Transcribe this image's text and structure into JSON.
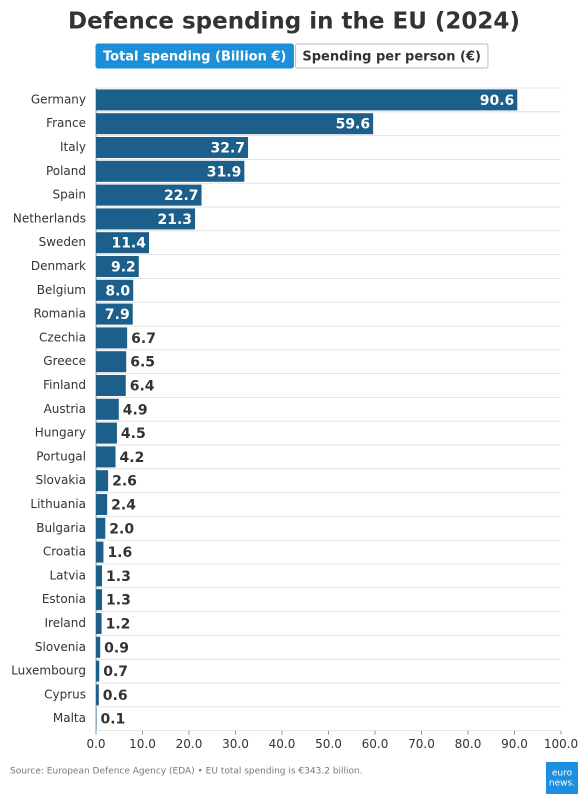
{
  "chart_data": {
    "type": "bar",
    "orientation": "horizontal",
    "title": "Defence spending in the EU (2024)",
    "tabs": [
      "Total spending (Billion €)",
      "Spending per person (€)"
    ],
    "active_tab": 0,
    "categories": [
      "Germany",
      "France",
      "Italy",
      "Poland",
      "Spain",
      "Netherlands",
      "Sweden",
      "Denmark",
      "Belgium",
      "Romania",
      "Czechia",
      "Greece",
      "Finland",
      "Austria",
      "Hungary",
      "Portugal",
      "Slovakia",
      "Lithuania",
      "Bulgaria",
      "Croatia",
      "Latvia",
      "Estonia",
      "Ireland",
      "Slovenia",
      "Luxembourg",
      "Cyprus",
      "Malta"
    ],
    "values": [
      90.6,
      59.6,
      32.7,
      31.9,
      22.7,
      21.3,
      11.4,
      9.2,
      8.0,
      7.9,
      6.7,
      6.5,
      6.4,
      4.9,
      4.5,
      4.2,
      2.6,
      2.4,
      2.0,
      1.6,
      1.3,
      1.3,
      1.2,
      0.9,
      0.7,
      0.6,
      0.1
    ],
    "value_labels": [
      "90.6",
      "59.6",
      "32.7",
      "31.9",
      "22.7",
      "21.3",
      "11.4",
      "9.2",
      "8.0",
      "7.9",
      "6.7",
      "6.5",
      "6.4",
      "4.9",
      "4.5",
      "4.2",
      "2.6",
      "2.4",
      "2.0",
      "1.6",
      "1.3",
      "1.3",
      "1.2",
      "0.9",
      "0.7",
      "0.6",
      "0.1"
    ],
    "color": "#1c5f8a",
    "xlim": [
      0,
      100
    ],
    "xticks": [
      {
        "value": 0,
        "label": "0.0"
      },
      {
        "value": 10,
        "label": "10.0"
      },
      {
        "value": 20,
        "label": "20.0"
      },
      {
        "value": 30,
        "label": "30.0"
      },
      {
        "value": 40,
        "label": "40.0"
      },
      {
        "value": 50,
        "label": "50.0"
      },
      {
        "value": 60,
        "label": "60.0"
      },
      {
        "value": 70,
        "label": "70.0"
      },
      {
        "value": 80,
        "label": "80.0"
      },
      {
        "value": 90,
        "label": "90.0"
      },
      {
        "value": 100,
        "label": "100.0"
      }
    ],
    "grid": true,
    "source": "Source: European Defence Agency (EDA) • EU total spending is €343.2 billion.",
    "logo": [
      "euro",
      "news."
    ]
  }
}
